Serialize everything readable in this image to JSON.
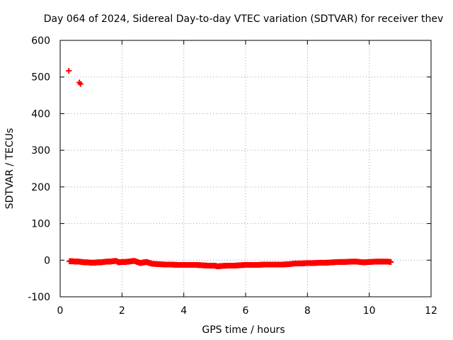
{
  "chart_data": {
    "type": "scatter",
    "title": "Day 064 of 2024, Sidereal Day-to-day VTEC variation (SDTVAR) for receiver thev",
    "xlabel": "GPS time / hours",
    "ylabel": "SDTVAR / TECUs",
    "xlim": [
      0,
      12
    ],
    "ylim": [
      -100,
      600
    ],
    "xticks": [
      "0",
      "2",
      "4",
      "6",
      "8",
      "10",
      "12"
    ],
    "yticks": [
      "-100",
      "0",
      "100",
      "200",
      "300",
      "400",
      "500",
      "600"
    ],
    "grid": true,
    "marker": "plus",
    "color": "#ff0000",
    "series": [
      {
        "name": "SDTVAR",
        "points": [
          [
            0.28,
            517
          ],
          [
            0.62,
            485
          ],
          [
            0.66,
            481
          ],
          [
            0.3,
            -3
          ],
          [
            0.4,
            -3
          ],
          [
            0.5,
            -4
          ],
          [
            0.6,
            -4
          ],
          [
            0.7,
            -5
          ],
          [
            0.8,
            -6
          ],
          [
            0.9,
            -6
          ],
          [
            1.0,
            -7
          ],
          [
            1.1,
            -7
          ],
          [
            1.2,
            -6
          ],
          [
            1.3,
            -6
          ],
          [
            1.4,
            -5
          ],
          [
            1.5,
            -4
          ],
          [
            1.6,
            -4
          ],
          [
            1.7,
            -3
          ],
          [
            1.8,
            -2
          ],
          [
            1.9,
            -6
          ],
          [
            2.0,
            -5
          ],
          [
            2.1,
            -5
          ],
          [
            2.2,
            -4
          ],
          [
            2.3,
            -3
          ],
          [
            2.4,
            -2
          ],
          [
            2.5,
            -5
          ],
          [
            2.6,
            -8
          ],
          [
            2.7,
            -6
          ],
          [
            2.8,
            -5
          ],
          [
            2.9,
            -8
          ],
          [
            3.0,
            -10
          ],
          [
            3.2,
            -11
          ],
          [
            3.4,
            -12
          ],
          [
            3.6,
            -12
          ],
          [
            3.8,
            -13
          ],
          [
            4.0,
            -13
          ],
          [
            4.2,
            -13
          ],
          [
            4.4,
            -13
          ],
          [
            4.6,
            -14
          ],
          [
            4.8,
            -15
          ],
          [
            5.0,
            -15
          ],
          [
            5.1,
            -17
          ],
          [
            5.2,
            -16
          ],
          [
            5.4,
            -15
          ],
          [
            5.6,
            -15
          ],
          [
            5.8,
            -14
          ],
          [
            6.0,
            -13
          ],
          [
            6.2,
            -13
          ],
          [
            6.4,
            -13
          ],
          [
            6.6,
            -12
          ],
          [
            6.8,
            -12
          ],
          [
            7.0,
            -12
          ],
          [
            7.2,
            -12
          ],
          [
            7.4,
            -11
          ],
          [
            7.6,
            -9
          ],
          [
            7.8,
            -9
          ],
          [
            8.0,
            -8
          ],
          [
            8.2,
            -8
          ],
          [
            8.4,
            -7
          ],
          [
            8.6,
            -7
          ],
          [
            8.8,
            -6
          ],
          [
            9.0,
            -5
          ],
          [
            9.2,
            -5
          ],
          [
            9.4,
            -4
          ],
          [
            9.6,
            -4
          ],
          [
            9.8,
            -6
          ],
          [
            10.0,
            -5
          ],
          [
            10.2,
            -4
          ],
          [
            10.4,
            -4
          ],
          [
            10.6,
            -4
          ],
          [
            10.7,
            -5
          ]
        ]
      }
    ]
  }
}
